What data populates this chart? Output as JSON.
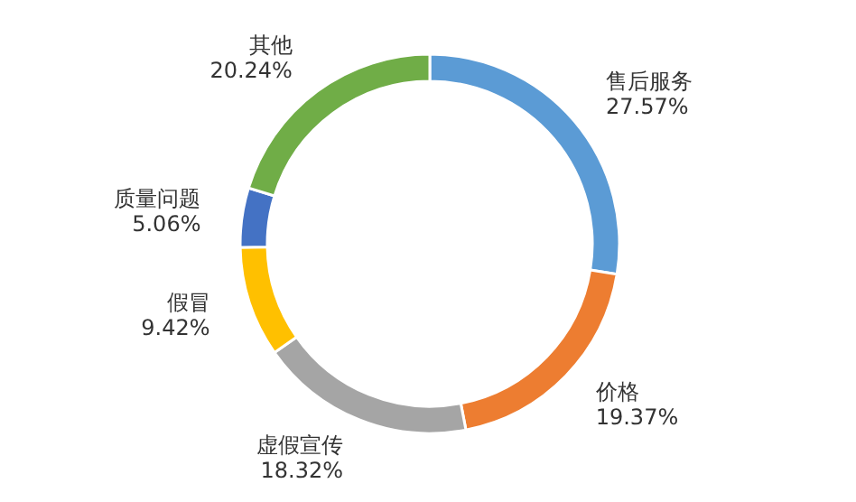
{
  "chart_data": {
    "type": "donut",
    "categories": [
      "售后服务",
      "价格",
      "虚假宣传",
      "假冒",
      "质量问题",
      "其他"
    ],
    "values": [
      27.57,
      19.37,
      18.32,
      9.42,
      5.06,
      20.24
    ],
    "colors": [
      "#5b9bd5",
      "#ed7d31",
      "#a5a5a5",
      "#ffc000",
      "#4472c4",
      "#70ad47"
    ],
    "data_labels": true,
    "value_labels": [
      "27.57%",
      "19.37%",
      "18.32%",
      "9.42%",
      "5.06%",
      "20.24%"
    ]
  }
}
